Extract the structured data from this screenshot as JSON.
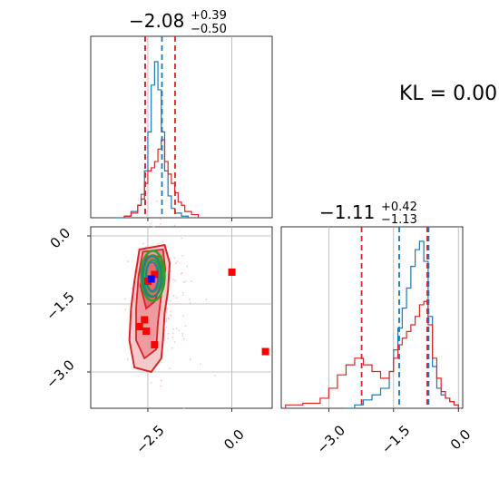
{
  "colors": {
    "blue": "#1f77b4",
    "red": "#d62728",
    "green": "#2ca02c",
    "marker_red": "#ff0000",
    "marker_blue": "#0000ff",
    "grid": "#b0b0b0",
    "pink_scatter": "#f7b6c8"
  },
  "chart_data": [
    {
      "type": "histogram",
      "panel": "top-left marginal",
      "title_value": "−2.08",
      "title_sup": "+0.39",
      "title_sub": "−0.50",
      "xlim": [
        -4.2,
        1.2
      ],
      "grid": true,
      "series": [
        {
          "color": "blue",
          "style": "step",
          "x": [
            -3.5,
            -3.2,
            -3.0,
            -2.8,
            -2.7,
            -2.6,
            -2.5,
            -2.4,
            -2.3,
            -2.2,
            -2.1,
            -2.0,
            -1.9,
            -1.8,
            -1.7,
            -1.5,
            -1.3
          ],
          "density": [
            0,
            0.01,
            0.04,
            0.08,
            0.15,
            0.3,
            0.55,
            0.85,
            1.0,
            0.82,
            0.55,
            0.3,
            0.14,
            0.06,
            0.03,
            0.01,
            0
          ]
        },
        {
          "color": "red",
          "style": "step",
          "x": [
            -3.2,
            -3.0,
            -2.8,
            -2.7,
            -2.6,
            -2.5,
            -2.4,
            -2.3,
            -2.2,
            -2.1,
            -2.0,
            -1.9,
            -1.8,
            -1.7,
            -1.6,
            -1.5,
            -1.4,
            -1.2,
            -1.0
          ],
          "density": [
            0.01,
            0.03,
            0.08,
            0.12,
            0.22,
            0.3,
            0.32,
            0.36,
            0.44,
            0.5,
            0.36,
            0.28,
            0.22,
            0.16,
            0.1,
            0.08,
            0.04,
            0.02,
            0
          ]
        }
      ],
      "quantile_lines": [
        {
          "x": -2.58,
          "color": "blue"
        },
        {
          "x": -2.08,
          "color": "blue"
        },
        {
          "x": -2.58,
          "color": "red"
        },
        {
          "x": -1.69,
          "color": "red"
        }
      ]
    },
    {
      "type": "histogram",
      "panel": "bottom-right marginal",
      "title_value": "−1.11",
      "title_sup": "+0.42",
      "title_sub": "−1.13",
      "xlim": [
        -4.1,
        0.1
      ],
      "xticks": [
        -3.0,
        -1.5,
        0.0
      ],
      "xtick_labels": [
        "−3.0",
        "−1.5",
        "0.0"
      ],
      "grid": true,
      "series": [
        {
          "color": "blue",
          "style": "step",
          "x": [
            -2.6,
            -2.4,
            -2.2,
            -2.0,
            -1.8,
            -1.6,
            -1.5,
            -1.4,
            -1.3,
            -1.2,
            -1.1,
            -1.0,
            -0.9,
            -0.8,
            -0.7,
            -0.6,
            -0.5,
            -0.4,
            -0.3,
            -0.2,
            -0.1,
            0.0
          ],
          "density": [
            0,
            0.02,
            0.05,
            0.08,
            0.12,
            0.22,
            0.35,
            0.48,
            0.6,
            0.72,
            0.85,
            0.95,
            1.0,
            0.88,
            0.55,
            0.25,
            0.12,
            0.08,
            0.06,
            0.04,
            0.02,
            0
          ]
        },
        {
          "color": "red",
          "style": "step",
          "x": [
            -4.0,
            -3.6,
            -3.2,
            -3.0,
            -2.8,
            -2.6,
            -2.4,
            -2.2,
            -2.0,
            -1.8,
            -1.6,
            -1.5,
            -1.4,
            -1.3,
            -1.2,
            -1.1,
            -1.0,
            -0.9,
            -0.8,
            -0.7,
            -0.6,
            -0.5,
            -0.4,
            -0.3,
            -0.2,
            -0.1,
            0.0
          ],
          "density": [
            0.02,
            0.03,
            0.06,
            0.12,
            0.2,
            0.26,
            0.3,
            0.26,
            0.22,
            0.18,
            0.22,
            0.3,
            0.38,
            0.42,
            0.46,
            0.5,
            0.55,
            0.62,
            0.64,
            0.5,
            0.3,
            0.18,
            0.1,
            0.06,
            0.04,
            0.02,
            0
          ]
        }
      ],
      "quantile_lines": [
        {
          "x": -1.37,
          "color": "blue"
        },
        {
          "x": -0.69,
          "color": "blue"
        },
        {
          "x": -2.24,
          "color": "red"
        },
        {
          "x": -0.72,
          "color": "red"
        }
      ]
    },
    {
      "type": "contour-scatter",
      "panel": "bottom-left joint",
      "xlim": [
        -4.2,
        1.2
      ],
      "ylim": [
        -3.8,
        0.2
      ],
      "xticks": [
        -2.5,
        0.0
      ],
      "xtick_labels": [
        "−2.5",
        "0.0"
      ],
      "yticks": [
        0.0,
        -1.5,
        -3.0
      ],
      "ytick_labels": [
        "0.0",
        "−1.5",
        "−3.0"
      ],
      "grid": true,
      "red_markers": [
        {
          "x": -2.5,
          "y": -1.0
        },
        {
          "x": -2.3,
          "y": -0.85
        },
        {
          "x": -2.6,
          "y": -1.85
        },
        {
          "x": -2.55,
          "y": -2.1
        },
        {
          "x": -2.75,
          "y": -2.0
        },
        {
          "x": -2.3,
          "y": -2.4
        },
        {
          "x": 0.0,
          "y": -0.8
        },
        {
          "x": 1.0,
          "y": -2.55
        }
      ],
      "blue_marker": {
        "x": -2.4,
        "y": -0.95
      }
    }
  ],
  "annotation": "KL = 0.00"
}
